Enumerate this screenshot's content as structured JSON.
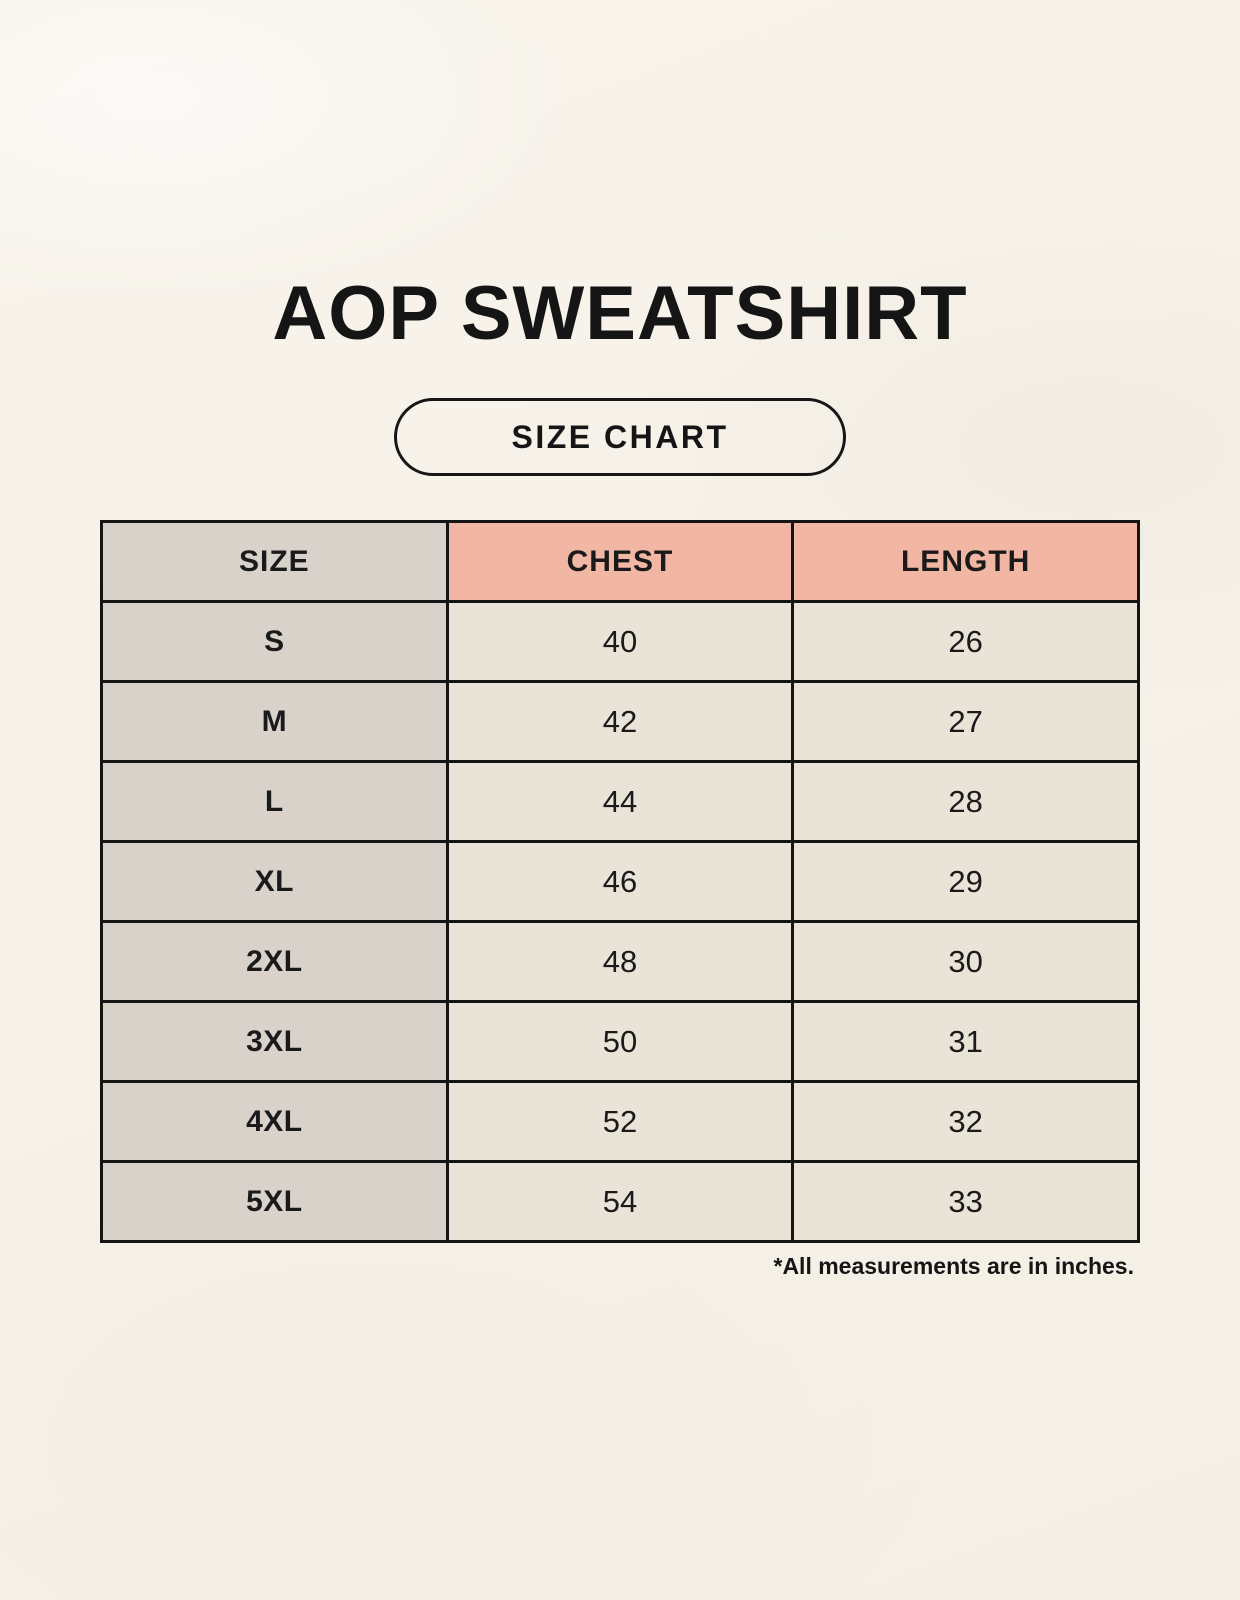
{
  "page": {
    "title": "AOP SWEATSHIRT",
    "badge_label": "SIZE CHART",
    "footnote": "*All measurements are in inches."
  },
  "table": {
    "headers": [
      "SIZE",
      "CHEST",
      "LENGTH"
    ],
    "rows": [
      {
        "size": "S",
        "chest": "40",
        "length": "26"
      },
      {
        "size": "M",
        "chest": "42",
        "length": "27"
      },
      {
        "size": "L",
        "chest": "44",
        "length": "28"
      },
      {
        "size": "XL",
        "chest": "46",
        "length": "29"
      },
      {
        "size": "2XL",
        "chest": "48",
        "length": "30"
      },
      {
        "size": "3XL",
        "chest": "50",
        "length": "31"
      },
      {
        "size": "4XL",
        "chest": "52",
        "length": "32"
      },
      {
        "size": "5XL",
        "chest": "54",
        "length": "33"
      }
    ]
  },
  "colors": {
    "page_background": "#f6f2e9",
    "size_column_background": "#d8d2cb",
    "measure_header_background": "#f1b6a4",
    "value_cell_background": "#eae4d8",
    "border": "#141414",
    "text": "#151515"
  },
  "chart_data": {
    "type": "table",
    "title": "AOP SWEATSHIRT",
    "subtitle": "SIZE CHART",
    "columns": [
      "SIZE",
      "CHEST",
      "LENGTH"
    ],
    "rows": [
      [
        "S",
        40,
        26
      ],
      [
        "M",
        42,
        27
      ],
      [
        "L",
        44,
        28
      ],
      [
        "XL",
        46,
        29
      ],
      [
        "2XL",
        48,
        30
      ],
      [
        "3XL",
        50,
        31
      ],
      [
        "4XL",
        52,
        32
      ],
      [
        "5XL",
        54,
        33
      ]
    ],
    "note": "*All measurements are in inches.",
    "units": "inches"
  }
}
